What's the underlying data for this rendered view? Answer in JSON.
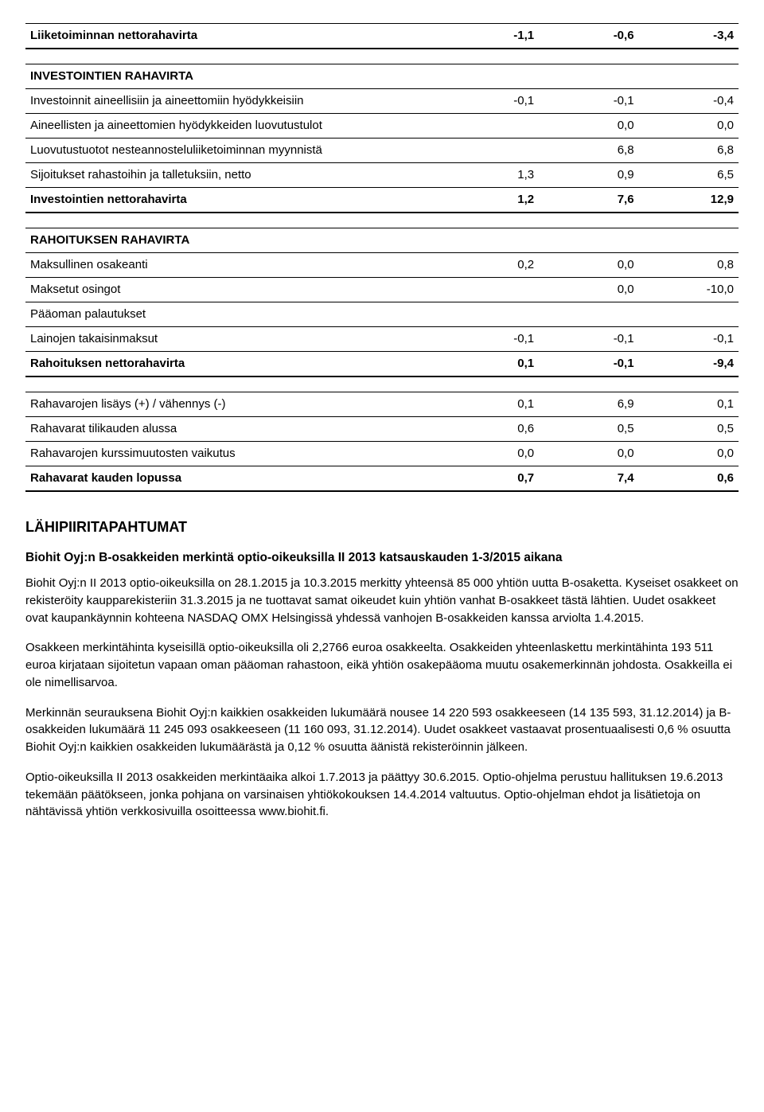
{
  "table": {
    "rows": [
      {
        "label": "Liiketoiminnan nettorahavirta",
        "c1": "-1,1",
        "c2": "-0,6",
        "c3": "-3,4",
        "bold": true
      },
      {
        "label": "INVESTOINTIEN RAHAVIRTA",
        "c1": "",
        "c2": "",
        "c3": "",
        "bold": true
      },
      {
        "label": "Investoinnit aineellisiin ja aineettomiin hyödykkeisiin",
        "c1": "-0,1",
        "c2": "-0,1",
        "c3": "-0,4",
        "bold": false
      },
      {
        "label": "Aineellisten ja aineettomien hyödykkeiden luovutustulot",
        "c1": "",
        "c2": "0,0",
        "c3": "0,0",
        "bold": false
      },
      {
        "label": "Luovutustuotot nesteannosteluliiketoiminnan myynnistä",
        "c1": "",
        "c2": "6,8",
        "c3": "6,8",
        "bold": false
      },
      {
        "label": "Sijoitukset rahastoihin ja talletuksiin, netto",
        "c1": "1,3",
        "c2": "0,9",
        "c3": "6,5",
        "bold": false
      },
      {
        "label": "Investointien nettorahavirta",
        "c1": "1,2",
        "c2": "7,6",
        "c3": "12,9",
        "bold": true
      },
      {
        "label": "RAHOITUKSEN RAHAVIRTA",
        "c1": "",
        "c2": "",
        "c3": "",
        "bold": true
      },
      {
        "label": "Maksullinen osakeanti",
        "c1": "0,2",
        "c2": "0,0",
        "c3": "0,8",
        "bold": false
      },
      {
        "label": "Maksetut osingot",
        "c1": "",
        "c2": "0,0",
        "c3": "-10,0",
        "bold": false
      },
      {
        "label": "Pääoman palautukset",
        "c1": "",
        "c2": "",
        "c3": "",
        "bold": false
      },
      {
        "label": "Lainojen takaisinmaksut",
        "c1": "-0,1",
        "c2": "-0,1",
        "c3": "-0,1",
        "bold": false
      },
      {
        "label": "Rahoituksen nettorahavirta",
        "c1": "0,1",
        "c2": "-0,1",
        "c3": "-9,4",
        "bold": true
      },
      {
        "label": "Rahavarojen lisäys (+) / vähennys (-)",
        "c1": "0,1",
        "c2": "6,9",
        "c3": "0,1",
        "bold": false
      },
      {
        "label": "Rahavarat tilikauden alussa",
        "c1": "0,6",
        "c2": "0,5",
        "c3": "0,5",
        "bold": false
      },
      {
        "label": "Rahavarojen kurssimuutosten vaikutus",
        "c1": "0,0",
        "c2": "0,0",
        "c3": "0,0",
        "bold": false
      },
      {
        "label": "Rahavarat kauden lopussa",
        "c1": "0,7",
        "c2": "7,4",
        "c3": "0,6",
        "bold": true
      }
    ]
  },
  "lahipiiri": {
    "heading": "LÄHIPIIRITAPAHTUMAT",
    "subheading": "Biohit Oyj:n B-osakkeiden merkintä optio-oikeuksilla II 2013 katsauskauden 1-3/2015 aikana",
    "p1": "Biohit Oyj:n II 2013 optio-oikeuksilla on 28.1.2015 ja 10.3.2015 merkitty yhteensä 85 000 yhtiön uutta B-osaketta. Kyseiset osakkeet on rekisteröity kaupparekisteriin 31.3.2015 ja ne tuottavat samat oikeudet kuin yhtiön vanhat B-osakkeet tästä lähtien. Uudet osakkeet ovat kaupankäynnin kohteena NASDAQ OMX Helsingissä yhdessä vanhojen B-osakkeiden kanssa arviolta 1.4.2015.",
    "p2": "Osakkeen merkintähinta kyseisillä optio-oikeuksilla oli 2,2766 euroa osakkeelta. Osakkeiden yhteenlaskettu merkintähinta 193 511 euroa kirjataan sijoitetun vapaan oman pääoman rahastoon, eikä yhtiön osakepääoma muutu osakemerkinnän johdosta. Osakkeilla ei ole nimellisarvoa.",
    "p3": "Merkinnän seurauksena Biohit Oyj:n kaikkien osakkeiden lukumäärä nousee 14 220 593 osakkeeseen (14 135 593, 31.12.2014) ja B-osakkeiden lukumäärä 11 245 093 osakkeeseen (11 160 093, 31.12.2014). Uudet osakkeet vastaavat prosentuaalisesti 0,6 % osuutta Biohit Oyj:n kaikkien osakkeiden lukumäärästä ja 0,12 % osuutta äänistä rekisteröinnin jälkeen.",
    "p4": "Optio-oikeuksilla II 2013 osakkeiden merkintäaika alkoi 1.7.2013 ja päättyy 30.6.2015. Optio-ohjelma perustuu hallituksen 19.6.2013 tekemään päätökseen, jonka pohjana on varsinaisen yhtiökokouksen 14.4.2014 valtuutus. Optio-ohjelman ehdot ja lisätietoja on nähtävissä yhtiön verkkosivuilla osoitteessa www.biohit.fi."
  }
}
